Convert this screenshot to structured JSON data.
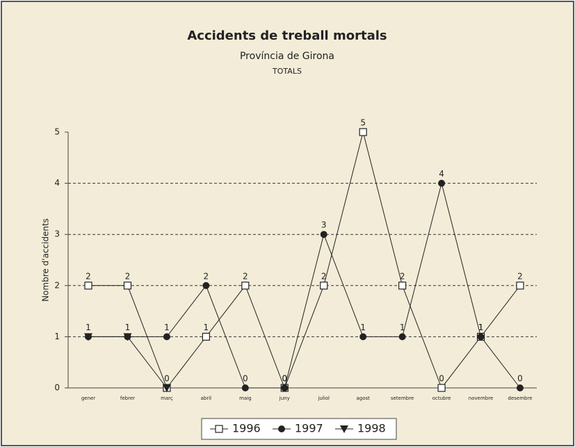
{
  "chart_data": {
    "type": "line",
    "title": "Accidents de treball mortals",
    "subtitle": "Província de Girona",
    "subtitle2": "TOTALS",
    "y_label": "Nombre d'accidents",
    "categories": [
      "gener",
      "febrer",
      "març",
      "abril",
      "maig",
      "juny",
      "juliol",
      "agost",
      "setembre",
      "octubre",
      "novembre",
      "desembre"
    ],
    "series": [
      {
        "name": "1996",
        "color": "#222222",
        "marker": "square-open",
        "values": [
          2,
          2,
          0,
          1,
          2,
          0,
          2,
          5,
          2,
          0,
          1,
          2
        ]
      },
      {
        "name": "1997",
        "color": "#222222",
        "marker": "circle",
        "values": [
          1,
          1,
          1,
          2,
          0,
          0,
          3,
          1,
          1,
          4,
          1,
          0
        ]
      },
      {
        "name": "1998",
        "color": "#222222",
        "marker": "triangle-down",
        "values": [
          1,
          1,
          0,
          null,
          null,
          null,
          null,
          null,
          null,
          null,
          null,
          null
        ]
      }
    ],
    "ylim": [
      0,
      5
    ],
    "yticks": [
      0,
      1,
      2,
      3,
      4,
      5
    ],
    "grid": true,
    "legend": "bottom"
  }
}
